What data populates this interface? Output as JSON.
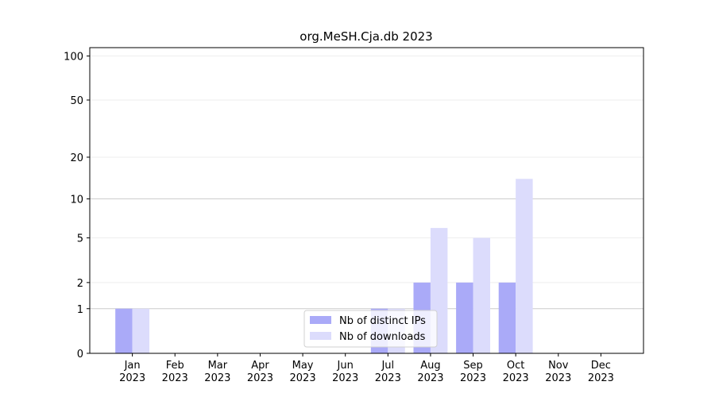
{
  "chart_data": {
    "type": "bar",
    "title": "org.MeSH.Cja.db 2023",
    "categories": [
      "Jan 2023",
      "Feb 2023",
      "Mar 2023",
      "Apr 2023",
      "May 2023",
      "Jun 2023",
      "Jul 2023",
      "Aug 2023",
      "Sep 2023",
      "Oct 2023",
      "Nov 2023",
      "Dec 2023"
    ],
    "series": [
      {
        "name": "Nb of distinct IPs",
        "color": "#aaaaf8",
        "values": [
          1,
          0,
          0,
          0,
          0,
          0,
          1,
          2,
          2,
          2,
          0,
          0
        ]
      },
      {
        "name": "Nb of downloads",
        "color": "#dcdcfc",
        "values": [
          1,
          0,
          0,
          0,
          0,
          0,
          1,
          6,
          5,
          14,
          0,
          0
        ]
      }
    ],
    "yscale": "log1p",
    "ylim": [
      0,
      114
    ],
    "yticks": [
      0,
      1,
      2,
      5,
      10,
      20,
      50,
      100
    ],
    "grid": true,
    "legend": "lower center"
  }
}
